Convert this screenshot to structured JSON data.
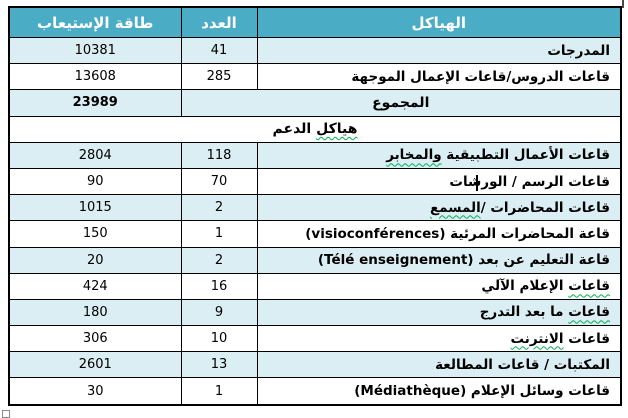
{
  "table": {
    "header": {
      "structures": "الهياكل",
      "count": "العدد",
      "capacity": "طاقة الإستيعاب"
    },
    "rows": [
      {
        "type": "data",
        "name": "المدرجات",
        "count": "41",
        "capacity": "10381",
        "shaded": true
      },
      {
        "type": "data",
        "name": "قاعات الدروس/قاعات الإعمال الموجهة",
        "count": "285",
        "capacity": "13608",
        "shaded": false
      },
      {
        "type": "total",
        "label": "المجموع",
        "capacity": "23989",
        "shaded": true
      },
      {
        "type": "section",
        "label": "هياكل الدعم",
        "squiggle": "هياكل",
        "shaded": false
      },
      {
        "type": "data",
        "name": "قاعات الأعمال التطبيقية والمخابر",
        "squiggle": "والمخابر",
        "count": "118",
        "capacity": "2804",
        "shaded": true
      },
      {
        "type": "data",
        "name": "قاعات الرسم / الورشات",
        "count": "70",
        "capacity": "90",
        "shaded": false,
        "has_text_cursor": true
      },
      {
        "type": "data",
        "name": "قاعات المحاضرات /المسمع",
        "squiggle": "المسمع",
        "count": "2",
        "capacity": "1015",
        "shaded": true
      },
      {
        "type": "data",
        "name": "قاعة المحاضرات المرئية (visioconférences)",
        "count": "1",
        "capacity": "150",
        "shaded": false
      },
      {
        "type": "data",
        "name": "قاعة التعليم عن بعد (Télé enseignement)",
        "count": "2",
        "capacity": "20",
        "shaded": true
      },
      {
        "type": "data",
        "name": "قاعات الإعلام الآلي",
        "squiggle": "قاعات",
        "count": "16",
        "capacity": "424",
        "shaded": false
      },
      {
        "type": "data",
        "name": "قاعات ما بعد التدرج",
        "squiggle": "قاعات",
        "count": "9",
        "capacity": "180",
        "shaded": true
      },
      {
        "type": "data",
        "name": "قاعات الانترنت",
        "squiggle": "الانترنت",
        "count": "10",
        "capacity": "306",
        "shaded": false
      },
      {
        "type": "data",
        "name": "المكتبات / قاعات المطالعة",
        "count": "13",
        "capacity": "2601",
        "shaded": true
      },
      {
        "type": "data",
        "name": "قاعات وسائل الإعلام (Médiathèque)",
        "count": "1",
        "capacity": "30",
        "shaded": false
      }
    ],
    "colors": {
      "header_bg": "#4BACC6",
      "band_bg": "#DAEEF3",
      "header_text": "#FFFFFF",
      "squiggle": "#00B050",
      "border": "#000000",
      "page_bg": "#FFFFFF"
    }
  }
}
